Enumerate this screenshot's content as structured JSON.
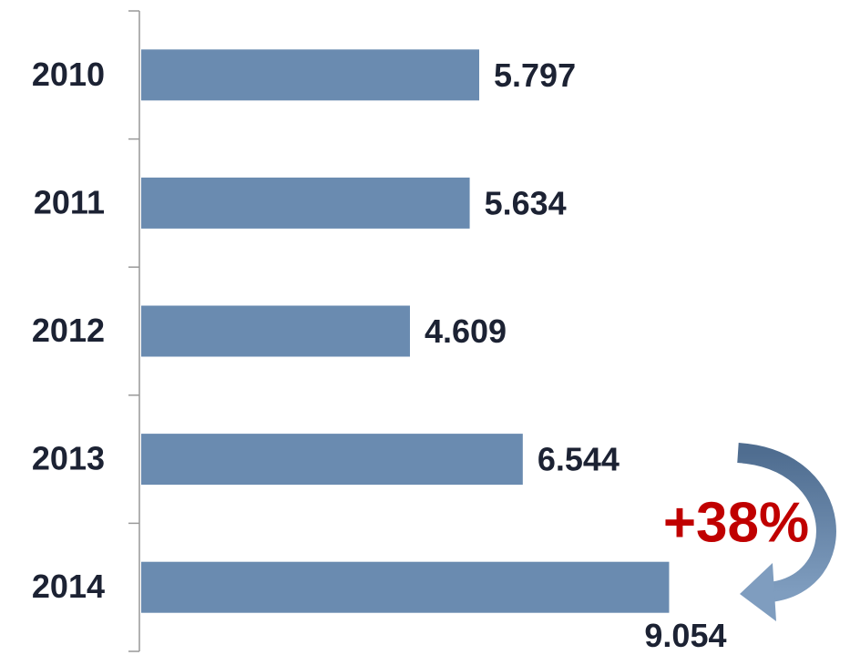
{
  "chart_data": {
    "type": "bar",
    "orientation": "horizontal",
    "categories": [
      "2010",
      "2011",
      "2012",
      "2013",
      "2014"
    ],
    "values": [
      5.797,
      5.634,
      4.609,
      6.544,
      9.054
    ],
    "color": "#6a8bb0",
    "xlim": [
      0,
      10
    ],
    "annotation": "+38%",
    "annotation_color": "#c00000"
  }
}
